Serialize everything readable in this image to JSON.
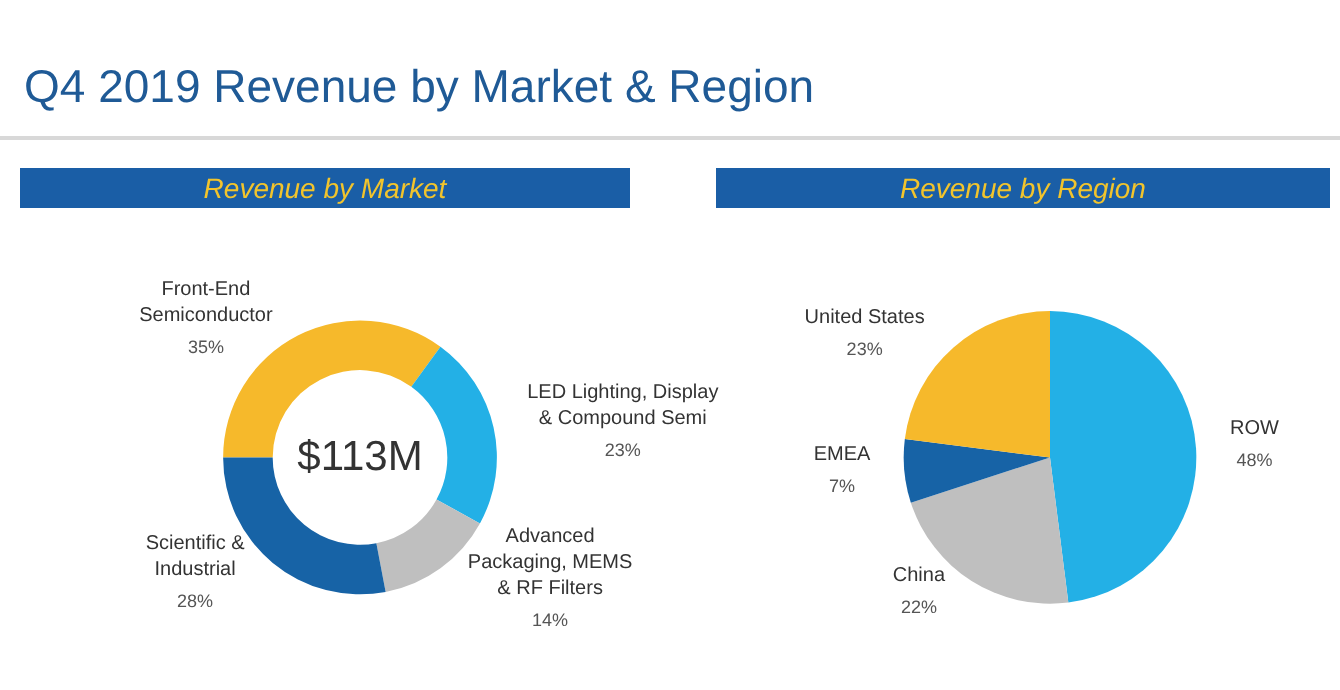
{
  "chart_data": [
    {
      "type": "other",
      "title": "Q4 2019 Revenue by Market & Region"
    },
    {
      "type": "donut",
      "title": "Revenue by Market",
      "annotations": [
        "$113M"
      ],
      "categories": [
        "Front-End\nSemiconductor",
        "LED Lighting, Display\n& Compound Semi",
        "Advanced\nPackaging, MEMS\n& RF Filters",
        "Scientific &\nIndustrial"
      ],
      "values": [
        35,
        23,
        14,
        28
      ],
      "value_labels": [
        "35%",
        "23%",
        "14%",
        "28%"
      ],
      "colors": [
        "#f6b92b",
        "#23b0e6",
        "#bfbfbf",
        "#1763a6"
      ]
    },
    {
      "type": "pie",
      "title": "Revenue by Region",
      "categories": [
        "ROW",
        "China",
        "EMEA",
        "United States"
      ],
      "values": [
        48,
        22,
        7,
        23
      ],
      "value_labels": [
        "48%",
        "22%",
        "7%",
        "23%"
      ],
      "colors": [
        "#23b0e6",
        "#bfbfbf",
        "#1763a6",
        "#f6b92b"
      ]
    }
  ]
}
